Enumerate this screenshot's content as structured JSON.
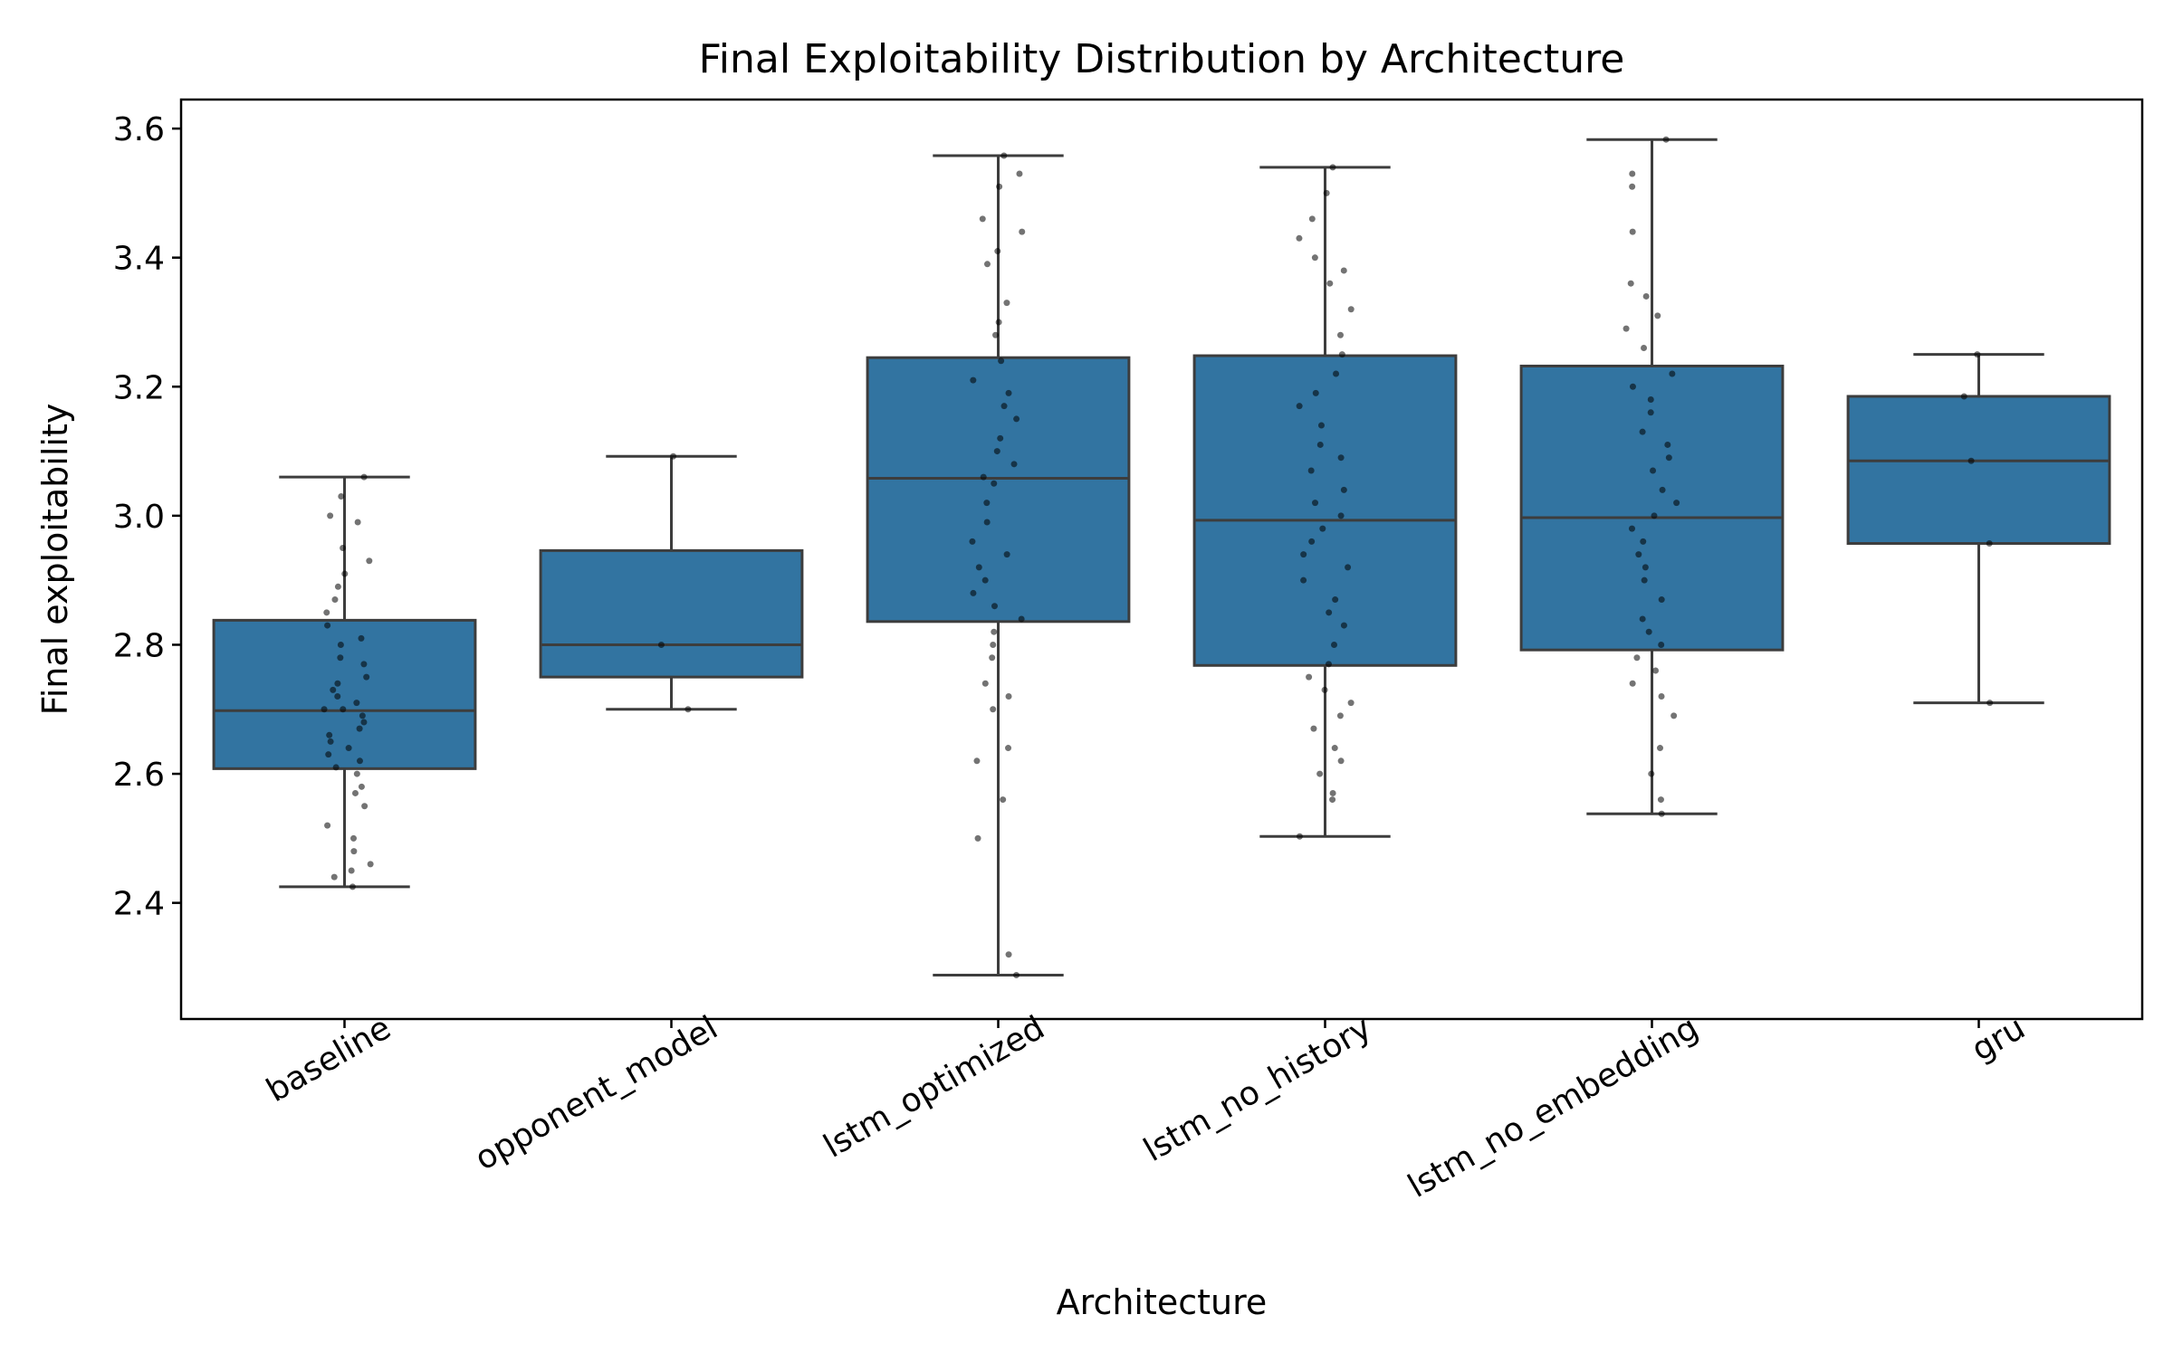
{
  "chart_data": {
    "type": "box",
    "title": "Final Exploitability Distribution by Architecture",
    "xlabel": "Architecture",
    "ylabel": "Final exploitability",
    "ylim": [
      2.22,
      3.645
    ],
    "yticks": [
      "2.4",
      "2.6",
      "2.8",
      "3.0",
      "3.2",
      "3.4",
      "3.6"
    ],
    "categories": [
      "baseline",
      "opponent_model",
      "lstm_optimized",
      "lstm_no_history",
      "lstm_no_embedding",
      "gru"
    ],
    "box_color": "#3274a1",
    "line_color": "#3d3d3d",
    "point_color": "#000000",
    "boxes": [
      {
        "category": "baseline",
        "whisker_low": 2.425,
        "q1": 2.608,
        "median": 2.698,
        "q3": 2.838,
        "whisker_high": 3.06
      },
      {
        "category": "opponent_model",
        "whisker_low": 2.7,
        "q1": 2.75,
        "median": 2.8,
        "q3": 2.946,
        "whisker_high": 3.092
      },
      {
        "category": "lstm_optimized",
        "whisker_low": 2.288,
        "q1": 2.836,
        "median": 3.058,
        "q3": 3.245,
        "whisker_high": 3.558
      },
      {
        "category": "lstm_no_history",
        "whisker_low": 2.503,
        "q1": 2.768,
        "median": 2.993,
        "q3": 3.248,
        "whisker_high": 3.54
      },
      {
        "category": "lstm_no_embedding",
        "whisker_low": 2.538,
        "q1": 2.792,
        "median": 2.997,
        "q3": 3.232,
        "whisker_high": 3.583
      },
      {
        "category": "gru",
        "whisker_low": 2.71,
        "q1": 2.957,
        "median": 3.085,
        "q3": 3.185,
        "whisker_high": 3.25
      }
    ],
    "points": [
      {
        "category": "baseline",
        "values": [
          2.425,
          2.44,
          2.45,
          2.46,
          2.48,
          2.5,
          2.52,
          2.55,
          2.57,
          2.58,
          2.6,
          2.61,
          2.62,
          2.63,
          2.64,
          2.65,
          2.66,
          2.67,
          2.68,
          2.69,
          2.7,
          2.7,
          2.71,
          2.72,
          2.73,
          2.74,
          2.75,
          2.77,
          2.78,
          2.8,
          2.81,
          2.83,
          2.85,
          2.87,
          2.89,
          2.91,
          2.93,
          2.95,
          2.99,
          3.0,
          3.03,
          3.06
        ]
      },
      {
        "category": "opponent_model",
        "values": [
          2.7,
          2.8,
          3.092
        ]
      },
      {
        "category": "lstm_optimized",
        "values": [
          2.288,
          2.32,
          2.5,
          2.56,
          2.62,
          2.64,
          2.7,
          2.72,
          2.74,
          2.78,
          2.8,
          2.82,
          2.84,
          2.86,
          2.88,
          2.9,
          2.92,
          2.94,
          2.96,
          2.99,
          3.02,
          3.05,
          3.06,
          3.08,
          3.1,
          3.12,
          3.15,
          3.17,
          3.19,
          3.21,
          3.24,
          3.28,
          3.3,
          3.33,
          3.39,
          3.41,
          3.44,
          3.46,
          3.51,
          3.53,
          3.558
        ]
      },
      {
        "category": "lstm_no_history",
        "values": [
          2.503,
          2.56,
          2.57,
          2.6,
          2.62,
          2.64,
          2.67,
          2.69,
          2.71,
          2.73,
          2.75,
          2.77,
          2.8,
          2.83,
          2.85,
          2.87,
          2.9,
          2.92,
          2.94,
          2.96,
          2.98,
          3.0,
          3.02,
          3.04,
          3.07,
          3.09,
          3.11,
          3.14,
          3.17,
          3.19,
          3.22,
          3.25,
          3.28,
          3.32,
          3.36,
          3.38,
          3.4,
          3.43,
          3.46,
          3.5,
          3.54
        ]
      },
      {
        "category": "lstm_no_embedding",
        "values": [
          2.538,
          2.56,
          2.6,
          2.64,
          2.69,
          2.72,
          2.74,
          2.76,
          2.78,
          2.8,
          2.82,
          2.84,
          2.87,
          2.9,
          2.92,
          2.94,
          2.96,
          2.98,
          3.0,
          3.02,
          3.04,
          3.07,
          3.09,
          3.11,
          3.13,
          3.16,
          3.18,
          3.2,
          3.22,
          3.26,
          3.29,
          3.31,
          3.34,
          3.36,
          3.44,
          3.51,
          3.53,
          3.583
        ]
      },
      {
        "category": "gru",
        "values": [
          2.71,
          2.957,
          3.085,
          3.185,
          3.25
        ]
      }
    ],
    "grid": false,
    "legend": "none"
  }
}
